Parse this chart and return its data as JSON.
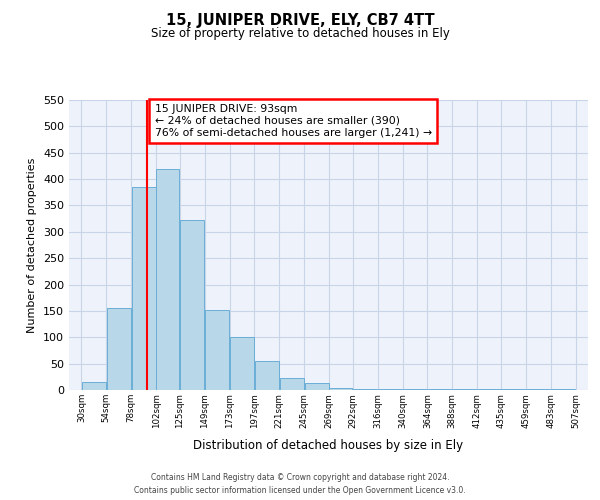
{
  "title": "15, JUNIPER DRIVE, ELY, CB7 4TT",
  "subtitle": "Size of property relative to detached houses in Ely",
  "xlabel": "Distribution of detached houses by size in Ely",
  "ylabel": "Number of detached properties",
  "bar_left_edges": [
    30,
    54,
    78,
    102,
    125,
    149,
    173,
    197,
    221,
    245,
    269,
    292,
    316,
    340,
    364,
    388,
    412,
    435,
    459,
    483
  ],
  "bar_widths": [
    24,
    24,
    24,
    23,
    24,
    24,
    24,
    24,
    24,
    24,
    23,
    24,
    24,
    24,
    24,
    24,
    23,
    24,
    24,
    24
  ],
  "bar_heights": [
    15,
    155,
    385,
    420,
    322,
    152,
    101,
    55,
    22,
    13,
    3,
    2,
    1,
    1,
    1,
    1,
    1,
    1,
    1,
    1
  ],
  "tick_labels": [
    "30sqm",
    "54sqm",
    "78sqm",
    "102sqm",
    "125sqm",
    "149sqm",
    "173sqm",
    "197sqm",
    "221sqm",
    "245sqm",
    "269sqm",
    "292sqm",
    "316sqm",
    "340sqm",
    "364sqm",
    "388sqm",
    "412sqm",
    "435sqm",
    "459sqm",
    "483sqm",
    "507sqm"
  ],
  "tick_positions": [
    30,
    54,
    78,
    102,
    125,
    149,
    173,
    197,
    221,
    245,
    269,
    292,
    316,
    340,
    364,
    388,
    412,
    435,
    459,
    483,
    507
  ],
  "ylim": [
    0,
    550
  ],
  "xlim": [
    18,
    519
  ],
  "bar_color": "#b8d8ea",
  "bar_edge_color": "#6aaed6",
  "grid_color": "#c8d4e8",
  "background_color": "#eef2fa",
  "red_line_x": 93,
  "annotation_title": "15 JUNIPER DRIVE: 93sqm",
  "annotation_line1": "← 24% of detached houses are smaller (390)",
  "annotation_line2": "76% of semi-detached houses are larger (1,241) →",
  "footnote1": "Contains HM Land Registry data © Crown copyright and database right 2024.",
  "footnote2": "Contains public sector information licensed under the Open Government Licence v3.0."
}
